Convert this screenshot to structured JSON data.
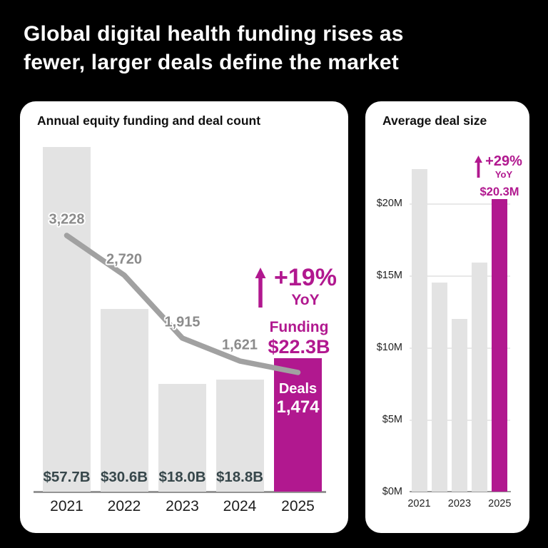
{
  "page": {
    "background": "#000000",
    "card_bg": "#ffffff",
    "accent": "#b1188f",
    "bar_gray": "#e3e3e3",
    "title_line1": "Global digital health funding rises as",
    "title_line2": "fewer, larger deals define the market"
  },
  "left_chart": {
    "title": "Annual equity funding and deal count",
    "bars": [
      {
        "year": "2021",
        "funding_label": "$57.7B",
        "funding_b": 57.7,
        "deals": 3228,
        "deals_label": "3,228",
        "highlight": false
      },
      {
        "year": "2022",
        "funding_label": "$30.6B",
        "funding_b": 30.6,
        "deals": 2720,
        "deals_label": "2,720",
        "highlight": false
      },
      {
        "year": "2023",
        "funding_label": "$18.0B",
        "funding_b": 18.0,
        "deals": 1915,
        "deals_label": "1,915",
        "highlight": false
      },
      {
        "year": "2024",
        "funding_label": "$18.8B",
        "funding_b": 18.8,
        "deals": 1621,
        "deals_label": "1,621",
        "highlight": false
      },
      {
        "year": "2025",
        "funding_label": "",
        "funding_b": 22.3,
        "deals": 1474,
        "deals_label": "",
        "highlight": true
      }
    ],
    "annotation": {
      "pct": "+19%",
      "yoy": "YoY",
      "funding_title": "Funding",
      "funding_value": "$22.3B",
      "deals_title": "Deals",
      "deals_value": "1,474"
    }
  },
  "right_chart": {
    "title": "Average deal size",
    "y_ticks": [
      {
        "label": "$20M",
        "value": 20
      },
      {
        "label": "$15M",
        "value": 15
      },
      {
        "label": "$10M",
        "value": 10
      },
      {
        "label": "$5M",
        "value": 5
      },
      {
        "label": "$0M",
        "value": 0
      }
    ],
    "bars": [
      {
        "year": "2021",
        "value_m": 22.4,
        "highlight": false
      },
      {
        "year": "2022",
        "value_m": 14.5,
        "highlight": false
      },
      {
        "year": "2023",
        "value_m": 12.0,
        "highlight": false
      },
      {
        "year": "2024",
        "value_m": 15.9,
        "highlight": false
      },
      {
        "year": "2025",
        "value_m": 20.3,
        "highlight": true
      }
    ],
    "x_ticks": [
      "2021",
      "2023",
      "2025"
    ],
    "annotation": {
      "pct": "+29%",
      "yoy": "YoY",
      "value": "$20.3M"
    }
  },
  "chart_data": [
    {
      "type": "bar",
      "title": "Annual equity funding and deal count",
      "categories": [
        "2021",
        "2022",
        "2023",
        "2024",
        "2025"
      ],
      "series": [
        {
          "name": "Equity funding",
          "type": "bar",
          "unit": "$B",
          "values": [
            57.7,
            30.6,
            18.0,
            18.8,
            22.3
          ],
          "labels": [
            "$57.7B",
            "$30.6B",
            "$18.0B",
            "$18.8B",
            "$22.3B"
          ]
        },
        {
          "name": "Deal count",
          "type": "line",
          "values": [
            3228,
            2720,
            1915,
            1621,
            1474
          ],
          "labels": [
            "3,228",
            "2,720",
            "1,915",
            "1,621",
            "1,474"
          ]
        }
      ],
      "highlight_category": "2025",
      "annotations": [
        "+19% YoY",
        "Funding $22.3B",
        "Deals 1,474"
      ],
      "ylim": [
        0,
        57.7
      ],
      "grid": false,
      "legend": "none"
    },
    {
      "type": "bar",
      "title": "Average deal size",
      "categories": [
        "2021",
        "2022",
        "2023",
        "2024",
        "2025"
      ],
      "values": [
        22.4,
        14.5,
        12.0,
        15.9,
        20.3
      ],
      "unit": "$M",
      "highlight_category": "2025",
      "annotations": [
        "+29% YoY",
        "$20.3M"
      ],
      "xlabel": "",
      "ylabel": "",
      "y_tick_labels": [
        "$0M",
        "$5M",
        "$10M",
        "$15M",
        "$20M"
      ],
      "x_tick_labels": [
        "2021",
        "2023",
        "2025"
      ],
      "ylim": [
        0,
        22.5
      ],
      "grid": true,
      "legend": "none"
    }
  ]
}
